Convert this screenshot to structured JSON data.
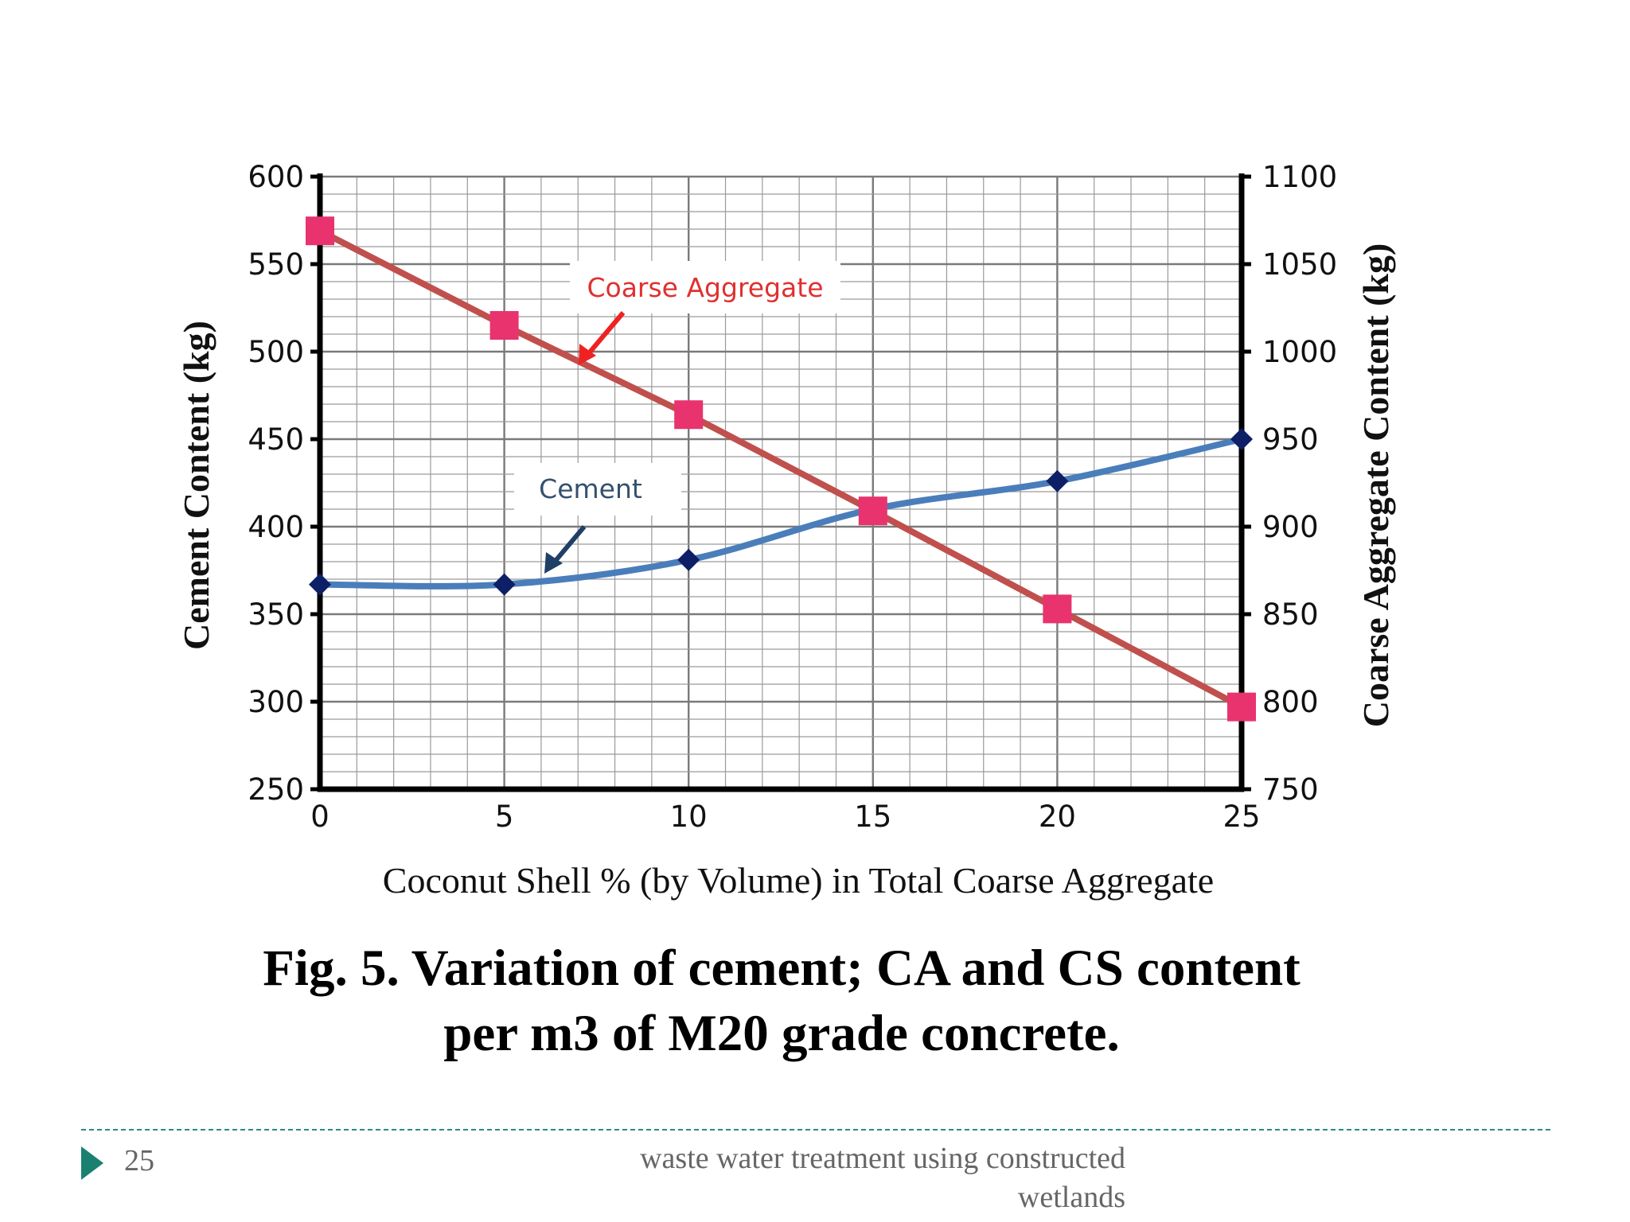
{
  "chart_data": {
    "type": "line",
    "x_title": "Coconut Shell % (by Volume) in Total Coarse Aggregate",
    "y_left_title": "Cement Content (kg)",
    "y_right_title": "Coarse Aggregate Content (kg)",
    "x": [
      0,
      5,
      10,
      15,
      20,
      25
    ],
    "x_ticks": [
      "0",
      "5",
      "10",
      "15",
      "20",
      "25"
    ],
    "xlim": [
      0,
      25
    ],
    "y_left_ticks": [
      "600",
      "550",
      "500",
      "450",
      "400",
      "350",
      "300",
      "250"
    ],
    "ylim_left": [
      250,
      600
    ],
    "y_right_ticks": [
      "1100",
      "1050",
      "1000",
      "950",
      "900",
      "850",
      "800",
      "750"
    ],
    "ylim_right": [
      750,
      1100
    ],
    "grid": true,
    "series": [
      {
        "name": "Cement",
        "axis": "left",
        "values": [
          367,
          367,
          381,
          410,
          426,
          450
        ],
        "color": "#4a7ebb",
        "marker": "diamond",
        "marker_color": "#0d1f66"
      },
      {
        "name": "Coarse Aggregate",
        "axis": "right",
        "values": [
          1069,
          1015,
          964,
          909,
          853,
          797
        ],
        "color": "#c0504d",
        "marker": "square",
        "marker_color": "#e8336f"
      }
    ],
    "annotations": [
      {
        "text": "Coarse Aggregate",
        "color": "#e03030",
        "arrow_color": "#ee2222"
      },
      {
        "text": "Cement",
        "color": "#34506e",
        "arrow_color": "#1f3f66"
      }
    ]
  },
  "caption": {
    "line1": "Fig. 5. Variation of cement; CA and CS content",
    "line2": "per m3 of M20 grade concrete."
  },
  "footer": {
    "page_number": "25",
    "text_line1": "waste water treatment using constructed",
    "text_line2": "wetlands",
    "accent_color": "#1a8070"
  }
}
